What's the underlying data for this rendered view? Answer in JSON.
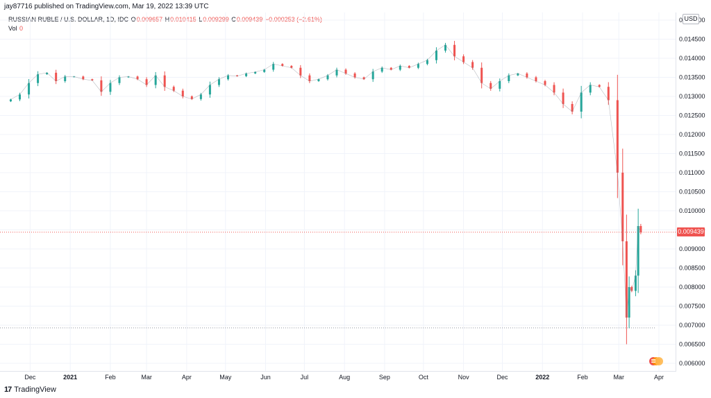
{
  "header": {
    "published": "jay87716 published on TradingView.com, Mar 19, 2022 13:39 UTC"
  },
  "legend": {
    "symbol": "RUSSIAN RUBLE / U.S. DOLLAR, 1D, IDC",
    "o_label": "O",
    "o_value": "0.009657",
    "h_label": "H",
    "h_value": "0.010415",
    "l_label": "L",
    "l_value": "0.009299",
    "c_label": "C",
    "c_value": "0.009439",
    "change": "−0.000253 (−2.61%)",
    "vol_label": "Vol",
    "vol_value": "0"
  },
  "axis": {
    "currency": "USD",
    "last_price": "0.009439",
    "last_price_value": 0.009439
  },
  "footer": {
    "logo": "17",
    "brand": "TradingView"
  },
  "colors": {
    "up": "#26a69a",
    "down": "#ef5350",
    "grid": "#f0f3fa",
    "last_line": "#ef5350"
  },
  "chart_data": {
    "type": "line",
    "title": "RUSSIAN RUBLE / U.S. DOLLAR, 1D, IDC",
    "ylim": [
      0.0058,
      0.0152
    ],
    "grid": true,
    "yticks": [
      0.006,
      0.0065,
      0.007,
      0.0075,
      0.008,
      0.0085,
      0.009,
      0.0095,
      0.01,
      0.0105,
      0.011,
      0.0115,
      0.012,
      0.0125,
      0.013,
      0.0135,
      0.014,
      0.0145,
      0.015
    ],
    "ytick_labels": [
      "0.006000",
      "0.006500",
      "0.007000",
      "0.007500",
      "0.008000",
      "0.008500",
      "0.009000",
      "0.009500",
      "0.010000",
      "0.010500",
      "0.011000",
      "0.011500",
      "0.012000",
      "0.012500",
      "0.013000",
      "0.013500",
      "0.014000",
      "0.014500",
      "0.015000"
    ],
    "xticks": [
      "Dec",
      "2021",
      "Feb",
      "Mar",
      "Apr",
      "May",
      "Jun",
      "Jul",
      "Aug",
      "Sep",
      "Oct",
      "Nov",
      "Dec",
      "2022",
      "Feb",
      "Mar",
      "Apr"
    ],
    "xtick_bold": [
      false,
      true,
      false,
      false,
      false,
      false,
      false,
      false,
      false,
      false,
      false,
      false,
      false,
      true,
      false,
      false,
      false
    ],
    "reference_line": 0.00693,
    "series": [
      {
        "x": [
          "2020-11-16",
          "2020-11-23",
          "2020-11-30",
          "2020-12-07",
          "2020-12-14",
          "2020-12-21",
          "2020-12-28",
          "2021-01-04",
          "2021-01-11",
          "2021-01-18",
          "2021-01-25",
          "2021-02-01",
          "2021-02-08",
          "2021-02-15",
          "2021-02-22",
          "2021-03-01",
          "2021-03-08",
          "2021-03-15",
          "2021-03-22",
          "2021-03-29",
          "2021-04-05",
          "2021-04-12",
          "2021-04-19",
          "2021-04-26",
          "2021-05-03",
          "2021-05-10",
          "2021-05-17",
          "2021-05-24",
          "2021-05-31",
          "2021-06-07",
          "2021-06-14",
          "2021-06-21",
          "2021-06-28",
          "2021-07-05",
          "2021-07-12",
          "2021-07-19",
          "2021-07-26",
          "2021-08-02",
          "2021-08-09",
          "2021-08-16",
          "2021-08-23",
          "2021-08-30",
          "2021-09-06",
          "2021-09-13",
          "2021-09-20",
          "2021-09-27",
          "2021-10-04",
          "2021-10-11",
          "2021-10-18",
          "2021-10-25",
          "2021-11-01",
          "2021-11-08",
          "2021-11-15",
          "2021-11-22",
          "2021-11-29",
          "2021-12-06",
          "2021-12-13",
          "2021-12-20",
          "2021-12-27",
          "2022-01-03",
          "2022-01-10",
          "2022-01-17",
          "2022-01-24",
          "2022-01-31",
          "2022-02-07",
          "2022-02-14",
          "2022-02-21",
          "2022-02-28",
          "2022-03-04",
          "2022-03-07",
          "2022-03-09",
          "2022-03-11",
          "2022-03-14",
          "2022-03-16",
          "2022-03-18"
        ],
        "values": [
          0.01292,
          0.01305,
          0.01335,
          0.01358,
          0.01362,
          0.0134,
          0.01352,
          0.01352,
          0.01345,
          0.01342,
          0.01312,
          0.01335,
          0.0135,
          0.01352,
          0.01345,
          0.0133,
          0.01355,
          0.01325,
          0.01315,
          0.013,
          0.01293,
          0.01305,
          0.0133,
          0.01345,
          0.01355,
          0.01353,
          0.0136,
          0.01364,
          0.0137,
          0.01385,
          0.0138,
          0.01375,
          0.01355,
          0.0134,
          0.01345,
          0.01355,
          0.0137,
          0.0136,
          0.0135,
          0.01345,
          0.01365,
          0.01375,
          0.0137,
          0.0138,
          0.01375,
          0.01385,
          0.01395,
          0.0142,
          0.01435,
          0.01405,
          0.0139,
          0.01375,
          0.01335,
          0.0132,
          0.0134,
          0.01355,
          0.0136,
          0.0135,
          0.0134,
          0.0133,
          0.0131,
          0.0128,
          0.0126,
          0.0131,
          0.0133,
          0.01325,
          0.0129,
          0.011,
          0.0092,
          0.0072,
          0.008,
          0.0079,
          0.0083,
          0.0096,
          0.00944
        ]
      }
    ]
  }
}
